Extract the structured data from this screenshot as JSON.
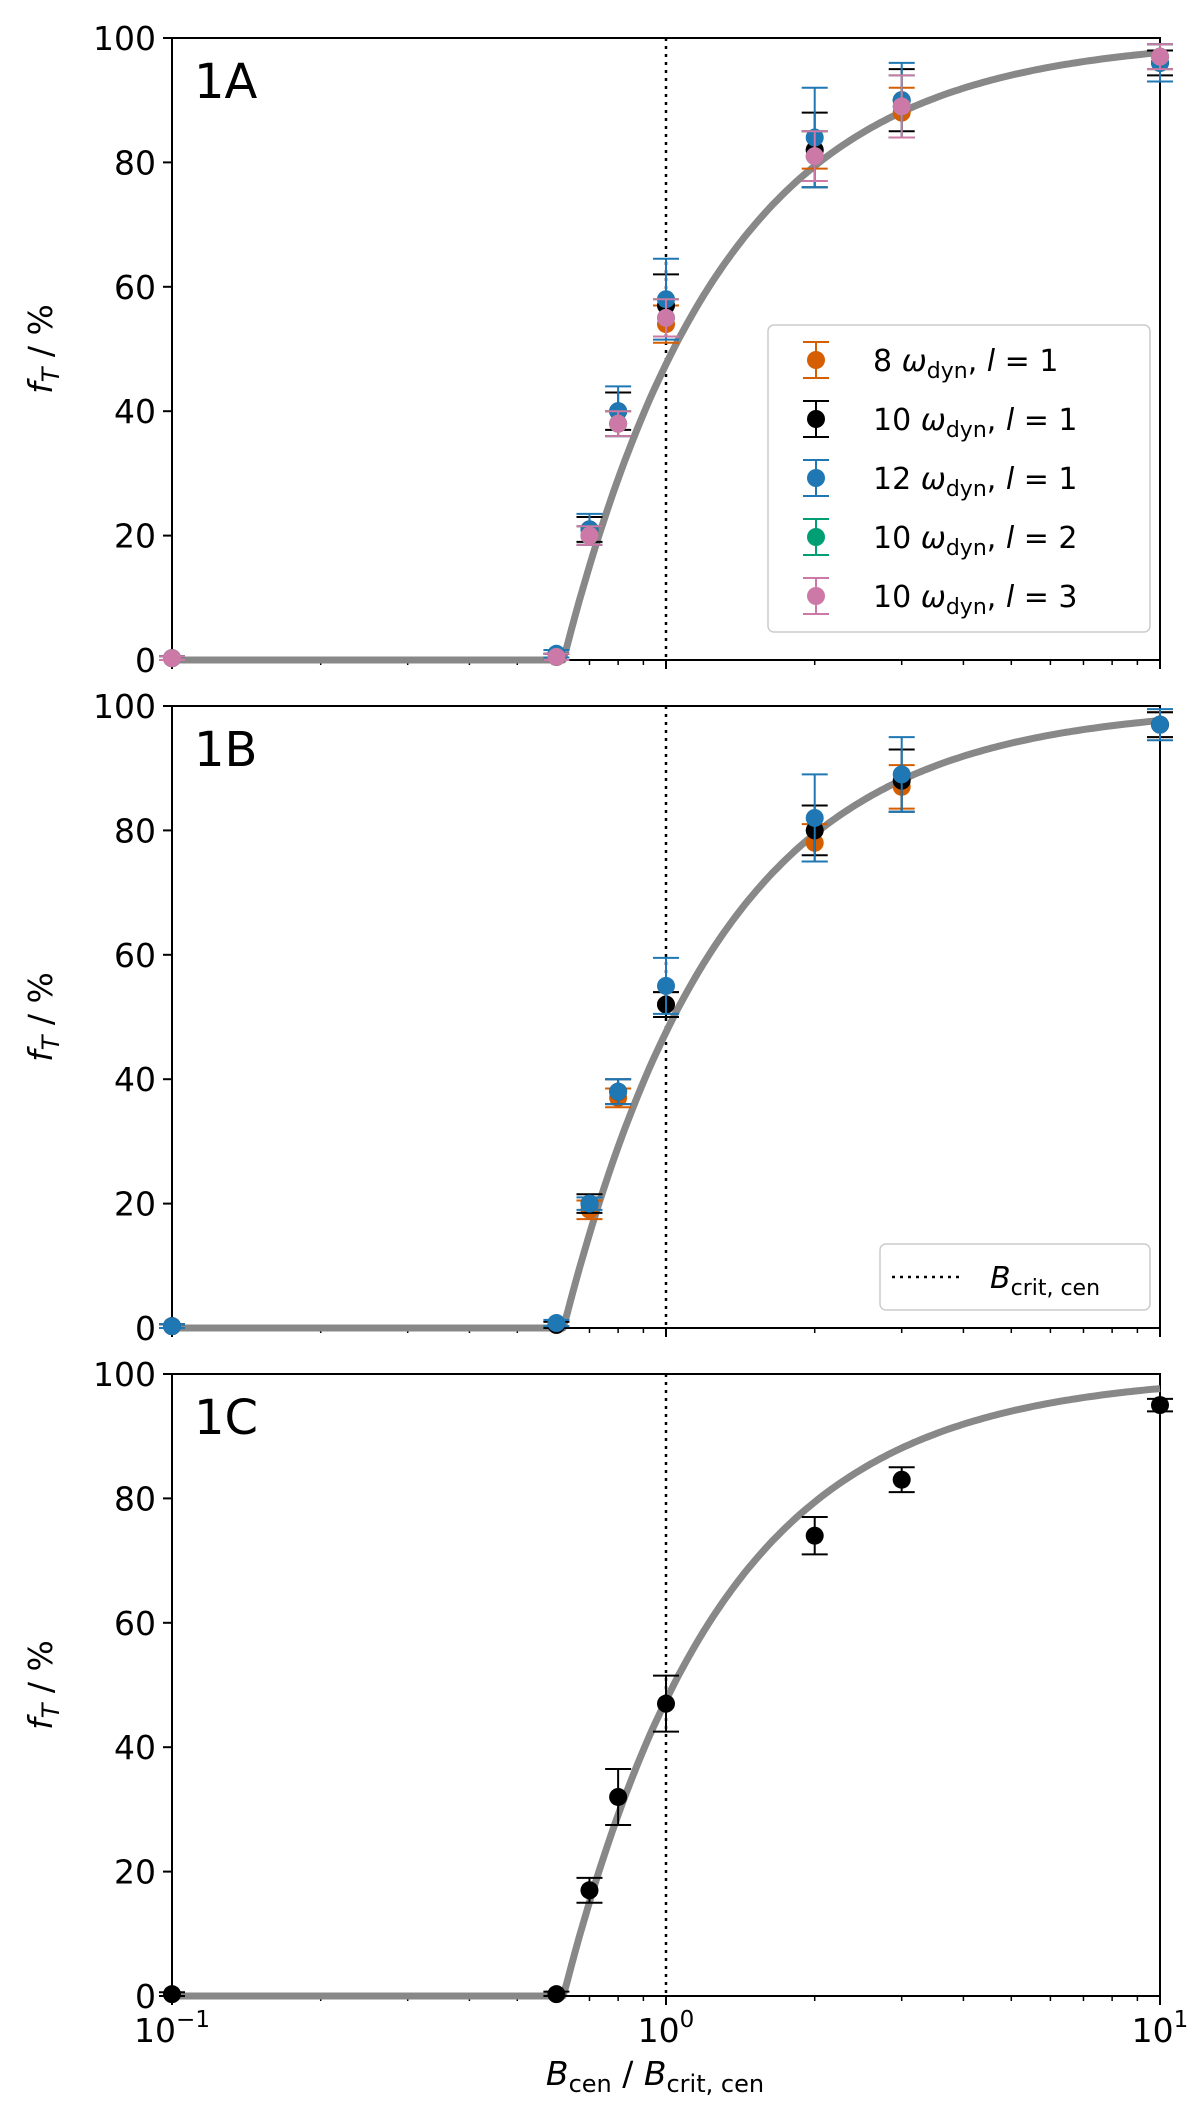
{
  "figure": {
    "xlabel_main": "B",
    "xlabel_main_sub": "cen",
    "xlabel_sep": " / ",
    "xlabel_den": "B",
    "xlabel_den_sub": "crit, cen",
    "ylabel_main": "f",
    "ylabel_sub": "T",
    "ylabel_rest": " / %",
    "x_ticks": [
      {
        "base": "10",
        "exp": "−1",
        "value": 0.1
      },
      {
        "base": "10",
        "exp": "0",
        "value": 1
      },
      {
        "base": "10",
        "exp": "1",
        "value": 10
      }
    ],
    "y_ticks": [
      "0",
      "20",
      "40",
      "60",
      "80",
      "100"
    ],
    "colors": {
      "orange": "#d55e00",
      "black": "#000000",
      "blue": "#1f77b4",
      "green": "#009e73",
      "pink": "#cc79a7",
      "curve": "#888888"
    }
  },
  "legend_series": [
    {
      "num": "8",
      "omega": "ω",
      "sub": "dyn",
      "l": "l",
      "eq": " = 1",
      "color": "#d55e00"
    },
    {
      "num": "10",
      "omega": "ω",
      "sub": "dyn",
      "l": "l",
      "eq": " = 1",
      "color": "#000000"
    },
    {
      "num": "12",
      "omega": "ω",
      "sub": "dyn",
      "l": "l",
      "eq": " = 1",
      "color": "#1f77b4"
    },
    {
      "num": "10",
      "omega": "ω",
      "sub": "dyn",
      "l": "l",
      "eq": " = 2",
      "color": "#009e73"
    },
    {
      "num": "10",
      "omega": "ω",
      "sub": "dyn",
      "l": "l",
      "eq": " = 3",
      "color": "#cc79a7"
    }
  ],
  "legend_crit": {
    "main": "B",
    "sub": "crit, cen"
  },
  "chart_data": [
    {
      "type": "scatter",
      "panel": "1A",
      "xscale": "log",
      "xlim": [
        0.1,
        10
      ],
      "ylim": [
        0,
        100
      ],
      "vline_x": 1,
      "legend_placement": "center-right",
      "series": [
        {
          "name": "8 ωdyn, l = 1",
          "color": "#d55e00",
          "x": [
            0.1,
            0.6,
            0.7,
            0.8,
            1.0,
            2.0,
            3.0,
            10.0
          ],
          "y": [
            0.3,
            0.5,
            20,
            38,
            54,
            82,
            88,
            97
          ],
          "err": [
            0.3,
            0.5,
            1.5,
            2.0,
            3.0,
            3.0,
            4.0,
            2.0
          ]
        },
        {
          "name": "10 ωdyn, l = 1",
          "color": "#000000",
          "x": [
            0.1,
            0.6,
            0.7,
            0.8,
            1.0,
            2.0,
            3.0,
            10.0
          ],
          "y": [
            0.3,
            0.5,
            21,
            40,
            57,
            82,
            90,
            96
          ],
          "err": [
            0.3,
            0.5,
            2.0,
            3.0,
            5.0,
            6.0,
            5.0,
            2.0
          ]
        },
        {
          "name": "12 ωdyn, l = 1",
          "color": "#1f77b4",
          "x": [
            0.1,
            0.6,
            0.7,
            0.8,
            1.0,
            2.0,
            3.0,
            10.0
          ],
          "y": [
            0.3,
            1.0,
            21,
            40,
            58,
            84,
            90,
            96
          ],
          "err": [
            0.3,
            0.6,
            2.5,
            4.0,
            6.5,
            8.0,
            6.0,
            3.0
          ]
        },
        {
          "name": "10 ωdyn, l = 2",
          "color": "#009e73",
          "x": [
            0.1,
            0.6,
            0.7,
            0.8,
            1.0,
            2.0,
            3.0,
            10.0
          ],
          "y": [
            0.3,
            0.5,
            20,
            38,
            55,
            81,
            89,
            97
          ],
          "err": [
            0.3,
            0.5,
            1.5,
            2.0,
            3.0,
            4.0,
            5.0,
            2.0
          ]
        },
        {
          "name": "10 ωdyn, l = 3",
          "color": "#cc79a7",
          "x": [
            0.1,
            0.6,
            0.7,
            0.8,
            1.0,
            2.0,
            3.0,
            10.0
          ],
          "y": [
            0.3,
            0.5,
            20,
            38,
            55,
            81,
            89,
            97
          ],
          "err": [
            0.3,
            0.5,
            1.5,
            2.0,
            3.0,
            4.0,
            5.0,
            2.0
          ]
        }
      ]
    },
    {
      "type": "scatter",
      "panel": "1B",
      "xscale": "log",
      "xlim": [
        0.1,
        10
      ],
      "ylim": [
        0,
        100
      ],
      "vline_x": 1,
      "legend_placement": "bottom-right",
      "series": [
        {
          "name": "8 ωdyn, l = 1",
          "color": "#d55e00",
          "x": [
            0.1,
            0.6,
            0.7,
            0.8,
            1.0,
            2.0,
            3.0,
            10.0
          ],
          "y": [
            0.3,
            0.5,
            19,
            37,
            52,
            78,
            87,
            97
          ],
          "err": [
            0.3,
            0.5,
            1.5,
            1.5,
            2.0,
            3.0,
            3.5,
            2.0
          ]
        },
        {
          "name": "10 ωdyn, l = 1",
          "color": "#000000",
          "x": [
            0.1,
            0.6,
            0.7,
            0.8,
            1.0,
            2.0,
            3.0,
            10.0
          ],
          "y": [
            0.3,
            0.5,
            20,
            38,
            52,
            80,
            88,
            97
          ],
          "err": [
            0.3,
            0.5,
            1.5,
            2.0,
            2.0,
            4.0,
            5.0,
            2.0
          ]
        },
        {
          "name": "12 ωdyn, l = 1",
          "color": "#1f77b4",
          "x": [
            0.1,
            0.6,
            0.7,
            0.8,
            1.0,
            2.0,
            3.0,
            10.0
          ],
          "y": [
            0.3,
            0.8,
            20,
            38,
            55,
            82,
            89,
            97
          ],
          "err": [
            0.3,
            0.5,
            1.0,
            2.0,
            4.5,
            7.0,
            6.0,
            2.5
          ]
        }
      ]
    },
    {
      "type": "scatter",
      "panel": "1C",
      "xscale": "log",
      "xlim": [
        0.1,
        10
      ],
      "ylim": [
        0,
        100
      ],
      "vline_x": 1,
      "series": [
        {
          "name": "",
          "color": "#000000",
          "x": [
            0.1,
            0.6,
            0.7,
            0.8,
            1.0,
            2.0,
            3.0,
            10.0
          ],
          "y": [
            0.3,
            0.3,
            17,
            32,
            47,
            74,
            83,
            95
          ],
          "err": [
            0.3,
            0.4,
            2.0,
            4.5,
            4.5,
            3.0,
            2.0,
            1.0
          ]
        }
      ]
    }
  ]
}
